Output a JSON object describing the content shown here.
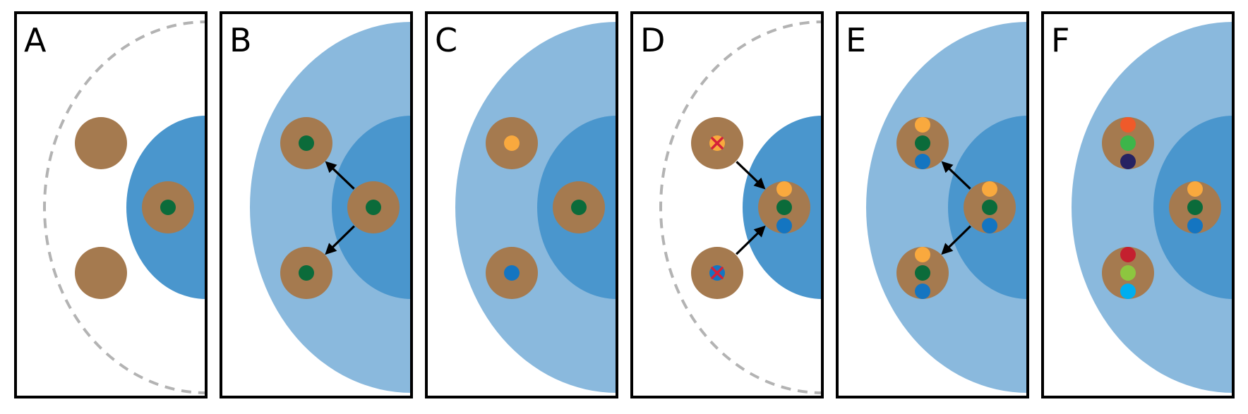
{
  "colors": {
    "cell": "#a57a4f",
    "outer_region": "#8ab9dd",
    "inner_region": "#4a96cd",
    "dashed": "#b3b3b3",
    "frame": "#000000",
    "arrow": "#000000",
    "cross": "#d4213a"
  },
  "panels": [
    {
      "label": "A",
      "background": "dashed",
      "cells": [
        {
          "pos": "top",
          "dots": []
        },
        {
          "pos": "center",
          "dots": [
            "#0b6b3a"
          ]
        },
        {
          "pos": "bottom",
          "dots": []
        }
      ],
      "arrows": []
    },
    {
      "label": "B",
      "background": "filled",
      "cells": [
        {
          "pos": "top",
          "dots": [
            "#0b6b3a"
          ]
        },
        {
          "pos": "center",
          "dots": [
            "#0b6b3a"
          ]
        },
        {
          "pos": "bottom",
          "dots": [
            "#0b6b3a"
          ]
        }
      ],
      "arrows": [
        "center-to-top",
        "center-to-bottom"
      ]
    },
    {
      "label": "C",
      "background": "filled",
      "cells": [
        {
          "pos": "top",
          "dots": [
            "#f9a93e"
          ]
        },
        {
          "pos": "center",
          "dots": [
            "#0b6b3a"
          ]
        },
        {
          "pos": "bottom",
          "dots": [
            "#1475c1"
          ]
        }
      ],
      "arrows": []
    },
    {
      "label": "D",
      "background": "dashed",
      "cells": [
        {
          "pos": "top",
          "dots": [
            "#f9a93e"
          ],
          "crossed": true
        },
        {
          "pos": "center",
          "dots": [
            "#f9a93e",
            "#0b6b3a",
            "#1475c1"
          ]
        },
        {
          "pos": "bottom",
          "dots": [
            "#1475c1"
          ],
          "crossed": true
        }
      ],
      "arrows": [
        "top-to-center",
        "bottom-to-center"
      ]
    },
    {
      "label": "E",
      "background": "filled",
      "cells": [
        {
          "pos": "top",
          "dots": [
            "#f9a93e",
            "#0b6b3a",
            "#1475c1"
          ]
        },
        {
          "pos": "center",
          "dots": [
            "#f9a93e",
            "#0b6b3a",
            "#1475c1"
          ]
        },
        {
          "pos": "bottom",
          "dots": [
            "#f9a93e",
            "#0b6b3a",
            "#1475c1"
          ]
        }
      ],
      "arrows": [
        "center-to-top",
        "center-to-bottom"
      ]
    },
    {
      "label": "F",
      "background": "filled",
      "cells": [
        {
          "pos": "top",
          "dots": [
            "#ef5a2a",
            "#3db54a",
            "#262262"
          ]
        },
        {
          "pos": "center",
          "dots": [
            "#f9a93e",
            "#0b6b3a",
            "#1475c1"
          ]
        },
        {
          "pos": "bottom",
          "dots": [
            "#c4202f",
            "#8dc63f",
            "#00aeef"
          ]
        }
      ],
      "arrows": []
    }
  ]
}
